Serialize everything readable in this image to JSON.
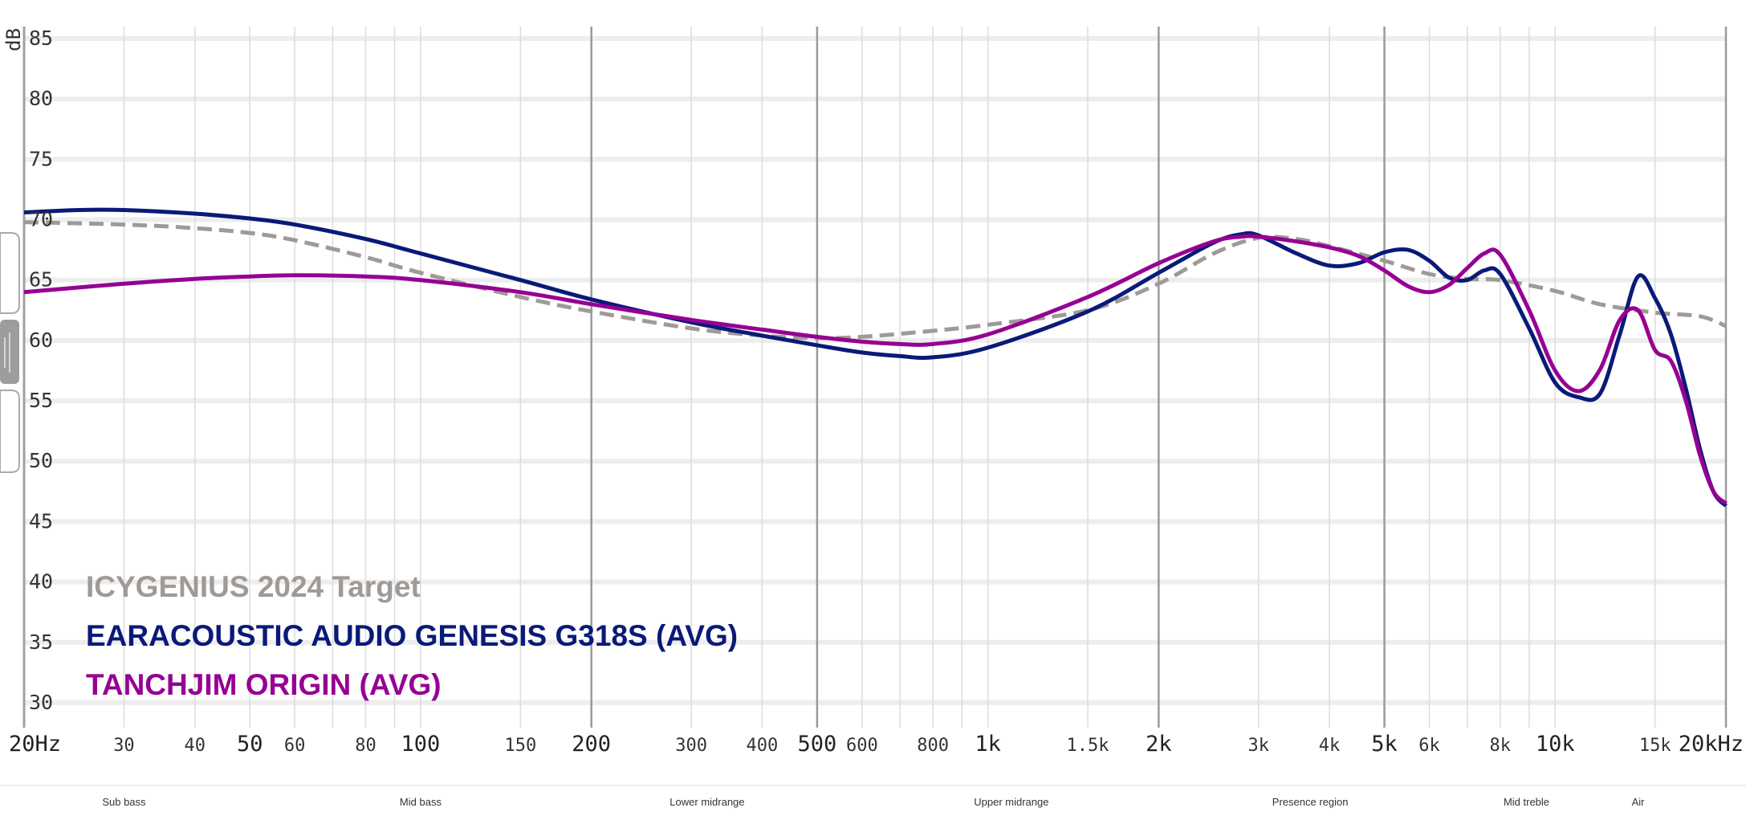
{
  "chart_data": {
    "type": "line",
    "title": "",
    "xlabel": "",
    "ylabel": "dB",
    "xscale": "log",
    "xlim": [
      20,
      20000
    ],
    "ylim": [
      28,
      86
    ],
    "grid": true,
    "legend_position": "bottom-left",
    "y_ticks": [
      {
        "value": 85,
        "label": "85"
      },
      {
        "value": 80,
        "label": "80"
      },
      {
        "value": 75,
        "label": "75"
      },
      {
        "value": 70,
        "label": "70"
      },
      {
        "value": 65,
        "label": "65"
      },
      {
        "value": 60,
        "label": "60"
      },
      {
        "value": 55,
        "label": "55"
      },
      {
        "value": 50,
        "label": "50"
      },
      {
        "value": 45,
        "label": "45"
      },
      {
        "value": 40,
        "label": "40"
      },
      {
        "value": 35,
        "label": "35"
      },
      {
        "value": 30,
        "label": "30"
      }
    ],
    "x_ticks": [
      {
        "value": 20,
        "label": "20Hz",
        "major": true
      },
      {
        "value": 30,
        "label": "30",
        "major": false
      },
      {
        "value": 40,
        "label": "40",
        "major": false
      },
      {
        "value": 50,
        "label": "50",
        "major": true
      },
      {
        "value": 60,
        "label": "60",
        "major": false
      },
      {
        "value": 80,
        "label": "80",
        "major": false
      },
      {
        "value": 100,
        "label": "100",
        "major": true
      },
      {
        "value": 150,
        "label": "150",
        "major": false
      },
      {
        "value": 200,
        "label": "200",
        "major": true
      },
      {
        "value": 300,
        "label": "300",
        "major": false
      },
      {
        "value": 400,
        "label": "400",
        "major": false
      },
      {
        "value": 500,
        "label": "500",
        "major": true
      },
      {
        "value": 600,
        "label": "600",
        "major": false
      },
      {
        "value": 800,
        "label": "800",
        "major": false
      },
      {
        "value": 1000,
        "label": "1k",
        "major": true
      },
      {
        "value": 1500,
        "label": "1.5k",
        "major": false
      },
      {
        "value": 2000,
        "label": "2k",
        "major": true
      },
      {
        "value": 3000,
        "label": "3k",
        "major": false
      },
      {
        "value": 4000,
        "label": "4k",
        "major": false
      },
      {
        "value": 5000,
        "label": "5k",
        "major": true
      },
      {
        "value": 6000,
        "label": "6k",
        "major": false
      },
      {
        "value": 8000,
        "label": "8k",
        "major": false
      },
      {
        "value": 10000,
        "label": "10k",
        "major": true
      },
      {
        "value": 15000,
        "label": "15k",
        "major": false
      },
      {
        "value": 20000,
        "label": "20kHz",
        "major": true
      }
    ],
    "gridlines_x": [
      20,
      30,
      40,
      50,
      60,
      70,
      80,
      90,
      100,
      150,
      200,
      300,
      400,
      500,
      600,
      700,
      800,
      900,
      1000,
      1500,
      2000,
      3000,
      4000,
      5000,
      6000,
      7000,
      8000,
      9000,
      10000,
      15000,
      20000
    ],
    "gridlines_x_strong": [
      200,
      500,
      2000,
      5000,
      20000
    ],
    "bands": [
      {
        "label": "Sub bass",
        "center_hz": 30
      },
      {
        "label": "Mid bass",
        "center_hz": 100
      },
      {
        "label": "Lower midrange",
        "center_hz": 320
      },
      {
        "label": "Upper midrange",
        "center_hz": 1100
      },
      {
        "label": "Presence region",
        "center_hz": 3700
      },
      {
        "label": "Mid treble",
        "center_hz": 8900
      },
      {
        "label": "Air",
        "center_hz": 14000
      }
    ],
    "series": [
      {
        "name": "ICYGENIUS 2024 Target",
        "color": "#a09a96",
        "style": "dashed",
        "x": [
          20,
          30,
          40,
          50,
          60,
          80,
          100,
          150,
          200,
          300,
          400,
          500,
          600,
          800,
          1000,
          1500,
          2000,
          2500,
          3000,
          3500,
          4000,
          5000,
          6000,
          7000,
          8000,
          10000,
          12000,
          15000,
          18000,
          20000
        ],
        "y": [
          69.8,
          69.6,
          69.3,
          68.9,
          68.3,
          66.9,
          65.6,
          63.6,
          62.4,
          61.0,
          60.4,
          60.2,
          60.3,
          60.8,
          61.3,
          62.5,
          64.7,
          67.2,
          68.5,
          68.4,
          67.8,
          66.6,
          65.5,
          65.1,
          65.0,
          64.1,
          63.0,
          62.3,
          62.0,
          61.2
        ]
      },
      {
        "name": "EARACOUSTIC AUDIO GENESIS G318S (AVG)",
        "color": "#0a1a78",
        "style": "solid",
        "x": [
          20,
          25,
          30,
          40,
          50,
          60,
          80,
          100,
          150,
          200,
          300,
          400,
          500,
          600,
          700,
          800,
          1000,
          1500,
          2000,
          2500,
          2800,
          3000,
          3500,
          4000,
          4500,
          5000,
          5500,
          6000,
          6500,
          7000,
          7500,
          8000,
          9000,
          10000,
          11000,
          12000,
          13000,
          14000,
          15000,
          16000,
          17000,
          18000,
          19000,
          20000
        ],
        "y": [
          70.6,
          70.8,
          70.8,
          70.5,
          70.1,
          69.6,
          68.4,
          67.2,
          65.0,
          63.4,
          61.5,
          60.4,
          59.6,
          59.0,
          58.7,
          58.6,
          59.4,
          62.4,
          65.6,
          68.1,
          68.8,
          68.7,
          67.2,
          66.2,
          66.4,
          67.3,
          67.5,
          66.6,
          65.2,
          65.0,
          65.8,
          65.5,
          61.0,
          56.5,
          55.3,
          55.6,
          60.5,
          65.3,
          63.5,
          60.5,
          56.0,
          51.0,
          47.5,
          46.3
        ]
      },
      {
        "name": "TANCHJIM ORIGIN (AVG)",
        "color": "#960093",
        "style": "solid",
        "x": [
          20,
          30,
          40,
          50,
          60,
          80,
          100,
          150,
          200,
          300,
          400,
          500,
          600,
          700,
          800,
          1000,
          1500,
          2000,
          2500,
          2800,
          3000,
          3500,
          4000,
          4500,
          5000,
          5500,
          6000,
          6500,
          7000,
          7500,
          8000,
          9000,
          10000,
          11000,
          12000,
          13000,
          14000,
          15000,
          16000,
          17000,
          18000,
          19000,
          20000
        ],
        "y": [
          64.0,
          64.7,
          65.1,
          65.3,
          65.4,
          65.3,
          65.0,
          64.0,
          63.0,
          61.7,
          60.9,
          60.3,
          59.9,
          59.7,
          59.7,
          60.5,
          63.6,
          66.4,
          68.2,
          68.6,
          68.6,
          68.2,
          67.7,
          67.0,
          65.8,
          64.5,
          64.0,
          64.6,
          66.0,
          67.2,
          67.1,
          62.5,
          57.5,
          55.8,
          57.6,
          61.7,
          62.5,
          59.2,
          58.3,
          55.0,
          50.5,
          47.5,
          46.5
        ]
      }
    ]
  }
}
